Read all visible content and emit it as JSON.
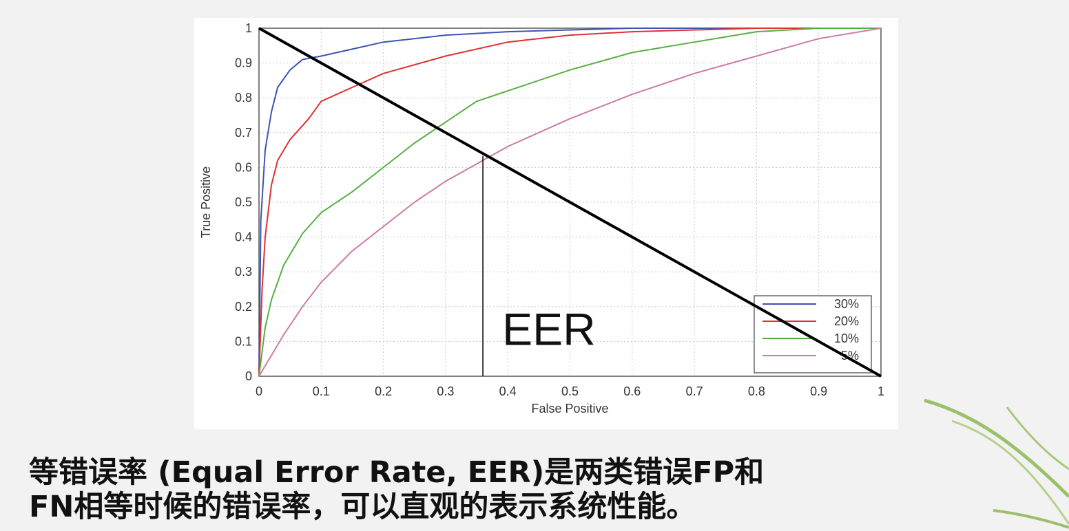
{
  "slide": {
    "caption_line1": "等错误率 (Equal Error Rate, EER)是两类错误FP和",
    "caption_line2": "FN相等时候的错误率，可以直观的表示系统性能。",
    "decoration": "leaf-icon"
  },
  "chart_data": {
    "type": "line",
    "title": "",
    "xlabel": "False Positive",
    "ylabel": "True Positive",
    "xlim": [
      0,
      1
    ],
    "ylim": [
      0,
      1
    ],
    "x_ticks": [
      "0",
      "0.1",
      "0.2",
      "0.3",
      "0.4",
      "0.5",
      "0.6",
      "0.7",
      "0.8",
      "0.9",
      "1"
    ],
    "y_ticks": [
      "0",
      "0.1",
      "0.2",
      "0.3",
      "0.4",
      "0.5",
      "0.6",
      "0.7",
      "0.8",
      "0.9",
      "1"
    ],
    "grid": true,
    "legend_position": "bottom-right",
    "series": [
      {
        "name": "30%",
        "color": "#3a55b4",
        "x": [
          0,
          0.003,
          0.01,
          0.02,
          0.03,
          0.05,
          0.07,
          0.1,
          0.15,
          0.2,
          0.3,
          0.4,
          0.5,
          0.6,
          0.8,
          1.0
        ],
        "y": [
          0,
          0.45,
          0.65,
          0.76,
          0.83,
          0.88,
          0.91,
          0.92,
          0.94,
          0.96,
          0.98,
          0.99,
          0.995,
          1.0,
          1.0,
          1.0
        ]
      },
      {
        "name": "20%",
        "color": "#e03030",
        "x": [
          0,
          0.005,
          0.01,
          0.02,
          0.03,
          0.05,
          0.08,
          0.1,
          0.15,
          0.2,
          0.3,
          0.4,
          0.5,
          0.6,
          0.8,
          1.0
        ],
        "y": [
          0,
          0.25,
          0.4,
          0.55,
          0.62,
          0.68,
          0.74,
          0.79,
          0.83,
          0.87,
          0.92,
          0.96,
          0.98,
          0.99,
          1.0,
          1.0
        ]
      },
      {
        "name": "10%",
        "color": "#55b040",
        "x": [
          0,
          0.01,
          0.02,
          0.04,
          0.07,
          0.1,
          0.15,
          0.2,
          0.25,
          0.3,
          0.35,
          0.4,
          0.5,
          0.6,
          0.7,
          0.8,
          0.9,
          1.0
        ],
        "y": [
          0,
          0.14,
          0.22,
          0.32,
          0.41,
          0.47,
          0.53,
          0.6,
          0.67,
          0.73,
          0.79,
          0.82,
          0.88,
          0.93,
          0.96,
          0.99,
          1.0,
          1.0
        ]
      },
      {
        "name": "5%",
        "color": "#cc7aa8",
        "x": [
          0,
          0.01,
          0.02,
          0.04,
          0.07,
          0.1,
          0.15,
          0.2,
          0.25,
          0.3,
          0.35,
          0.4,
          0.5,
          0.6,
          0.7,
          0.8,
          0.9,
          1.0
        ],
        "y": [
          0,
          0.03,
          0.06,
          0.12,
          0.2,
          0.27,
          0.36,
          0.43,
          0.5,
          0.56,
          0.61,
          0.66,
          0.74,
          0.81,
          0.87,
          0.92,
          0.97,
          1.0
        ]
      }
    ],
    "annotations": [
      {
        "text": "EER",
        "x": 0.36,
        "y": 0.633,
        "line": "diagonal from (0,1) to (1,0) with vertical marker down to x-axis"
      }
    ]
  }
}
